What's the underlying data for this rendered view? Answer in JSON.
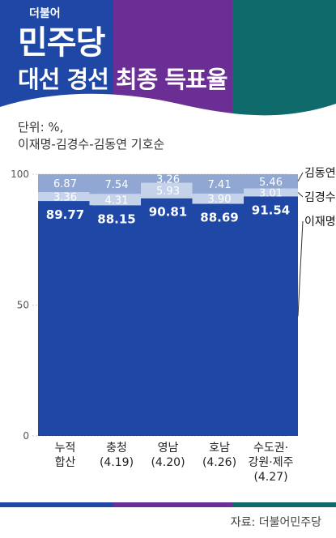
{
  "header": {
    "party_small": "더불어",
    "party_name": "민주당",
    "title": "대선 경선 최종 득표율"
  },
  "unit_note": "단위: %,",
  "order_note": "이재명-김경수-김동연 기호순",
  "source": "자료: 더불어민주당",
  "colors": {
    "blue": "#1f47a6",
    "purple": "#6a2e94",
    "teal": "#0f6b6b",
    "lee": "#1f47a6",
    "kim_gs": "#c5d3ea",
    "kim_dy": "#8fa7d2",
    "axis_text": "#555555"
  },
  "chart_data": {
    "type": "bar",
    "stacked": true,
    "ylim": [
      0,
      100
    ],
    "yticks": [
      0,
      50,
      100
    ],
    "categories": [
      [
        "누적",
        "합산"
      ],
      [
        "충청",
        "(4.19)"
      ],
      [
        "영남",
        "(4.20)"
      ],
      [
        "호남",
        "(4.26)"
      ],
      [
        "수도권·",
        "강원·제주",
        "(4.27)"
      ]
    ],
    "series": [
      {
        "name": "이재명",
        "values": [
          89.77,
          88.15,
          90.81,
          88.69,
          91.54
        ]
      },
      {
        "name": "김경수",
        "values": [
          3.36,
          4.31,
          5.93,
          3.9,
          3.01
        ]
      },
      {
        "name": "김동연",
        "values": [
          6.87,
          7.54,
          3.26,
          7.41,
          5.46
        ]
      }
    ],
    "value_labels": [
      [
        "89.77",
        "88.15",
        "90.81",
        "88.69",
        "91.54"
      ],
      [
        "3.36",
        "4.31",
        "5.93",
        "3.90",
        "3.01"
      ],
      [
        "6.87",
        "7.54",
        "3.26",
        "7.41",
        "5.46"
      ]
    ],
    "legend_placement": "right"
  }
}
